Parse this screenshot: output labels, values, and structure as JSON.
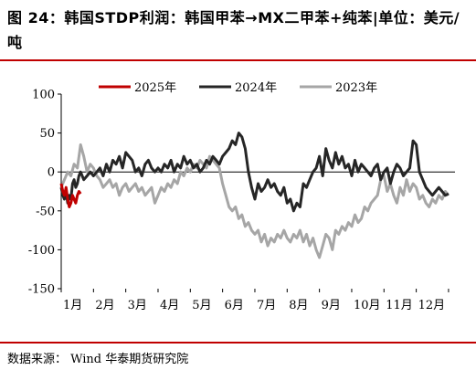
{
  "header": {
    "title": "图 24：韩国STDP利润：韩国甲苯→MX二甲苯+纯苯|单位：美元/吨"
  },
  "footer": {
    "source": "数据来源： Wind 华泰期货研究院"
  },
  "colors": {
    "series_2025": "#c00000",
    "series_2024": "#262626",
    "series_2023": "#a6a6a6",
    "rule": "#c00000"
  },
  "chart_data": {
    "type": "line",
    "title": "",
    "xlabel": "",
    "ylabel": "",
    "ylim": [
      -150,
      100
    ],
    "yticks": [
      100,
      50,
      0,
      -50,
      -100,
      -150
    ],
    "xlim": [
      0,
      12.2
    ],
    "x_tick_labels": [
      "1月",
      "2月",
      "3月",
      "4月",
      "5月",
      "6月",
      "7月",
      "8月",
      "9月",
      "10月",
      "11月",
      "12月"
    ],
    "grid": false,
    "legend": "top",
    "series": [
      {
        "name": "2025年",
        "color": "#c00000",
        "x": [
          0.0,
          0.05,
          0.1,
          0.15,
          0.2,
          0.25,
          0.3,
          0.35,
          0.4,
          0.45,
          0.5,
          0.55,
          0.6
        ],
        "y": [
          -15,
          -25,
          -30,
          -20,
          -35,
          -45,
          -40,
          -30,
          -35,
          -40,
          -30,
          -25,
          -28
        ]
      },
      {
        "name": "2024年",
        "color": "#262626",
        "x": [
          0.0,
          0.05,
          0.1,
          0.15,
          0.2,
          0.25,
          0.3,
          0.35,
          0.4,
          0.45,
          0.5,
          0.55,
          0.6,
          0.7,
          0.8,
          0.9,
          1.0,
          1.1,
          1.2,
          1.3,
          1.4,
          1.5,
          1.6,
          1.7,
          1.8,
          1.9,
          2.0,
          2.1,
          2.2,
          2.3,
          2.4,
          2.5,
          2.6,
          2.7,
          2.8,
          2.9,
          3.0,
          3.1,
          3.2,
          3.3,
          3.4,
          3.5,
          3.6,
          3.7,
          3.8,
          3.9,
          4.0,
          4.1,
          4.2,
          4.3,
          4.4,
          4.5,
          4.6,
          4.7,
          4.8,
          4.9,
          5.0,
          5.1,
          5.2,
          5.3,
          5.4,
          5.5,
          5.6,
          5.7,
          5.8,
          5.9,
          6.0,
          6.1,
          6.2,
          6.3,
          6.4,
          6.5,
          6.6,
          6.7,
          6.8,
          6.9,
          7.0,
          7.1,
          7.2,
          7.3,
          7.4,
          7.5,
          7.6,
          7.7,
          7.8,
          7.9,
          8.0,
          8.1,
          8.2,
          8.3,
          8.4,
          8.5,
          8.6,
          8.7,
          8.8,
          8.9,
          9.0,
          9.1,
          9.2,
          9.3,
          9.4,
          9.5,
          9.6,
          9.7,
          9.8,
          9.9,
          10.0,
          10.1,
          10.2,
          10.3,
          10.4,
          10.5,
          10.6,
          10.7,
          10.8,
          10.9,
          11.0,
          11.1,
          11.2,
          11.3,
          11.4,
          11.5,
          11.6,
          11.7,
          11.8,
          11.9,
          12.0
        ],
        "y": [
          -20,
          -30,
          -35,
          -25,
          -40,
          -30,
          -35,
          -15,
          -10,
          -20,
          -15,
          -5,
          0,
          -10,
          -5,
          0,
          -5,
          0,
          5,
          -5,
          10,
          0,
          15,
          10,
          20,
          5,
          25,
          20,
          15,
          0,
          5,
          -5,
          10,
          15,
          5,
          0,
          5,
          0,
          10,
          5,
          15,
          0,
          10,
          5,
          20,
          10,
          15,
          5,
          10,
          0,
          5,
          15,
          10,
          20,
          15,
          10,
          20,
          25,
          30,
          40,
          35,
          50,
          45,
          30,
          0,
          -20,
          -35,
          -15,
          -25,
          -20,
          -10,
          -20,
          -15,
          -25,
          -30,
          -20,
          -40,
          -35,
          -50,
          -40,
          -45,
          -15,
          -20,
          -10,
          0,
          5,
          20,
          -5,
          30,
          15,
          5,
          25,
          10,
          20,
          5,
          10,
          -5,
          15,
          0,
          10,
          5,
          0,
          -5,
          5,
          10,
          -10,
          0,
          5,
          -15,
          0,
          10,
          5,
          -5,
          0,
          5,
          40,
          35,
          0,
          -10,
          -20,
          -25,
          -30,
          -25,
          -20,
          -25,
          -30,
          -28
        ]
      },
      {
        "name": "2023年",
        "color": "#a6a6a6",
        "x": [
          0.0,
          0.1,
          0.2,
          0.3,
          0.4,
          0.5,
          0.6,
          0.7,
          0.8,
          0.9,
          1.0,
          1.1,
          1.2,
          1.3,
          1.4,
          1.5,
          1.6,
          1.7,
          1.8,
          1.9,
          2.0,
          2.1,
          2.2,
          2.3,
          2.4,
          2.5,
          2.6,
          2.7,
          2.8,
          2.9,
          3.0,
          3.1,
          3.2,
          3.3,
          3.4,
          3.5,
          3.6,
          3.7,
          3.8,
          3.9,
          4.0,
          4.1,
          4.2,
          4.3,
          4.4,
          4.5,
          4.6,
          4.7,
          4.8,
          4.9,
          5.0,
          5.1,
          5.2,
          5.3,
          5.4,
          5.5,
          5.6,
          5.7,
          5.8,
          5.9,
          6.0,
          6.1,
          6.2,
          6.3,
          6.4,
          6.5,
          6.6,
          6.7,
          6.8,
          6.9,
          7.0,
          7.1,
          7.2,
          7.3,
          7.4,
          7.5,
          7.6,
          7.7,
          7.8,
          7.9,
          8.0,
          8.1,
          8.2,
          8.3,
          8.4,
          8.5,
          8.6,
          8.7,
          8.8,
          8.9,
          9.0,
          9.1,
          9.2,
          9.3,
          9.4,
          9.5,
          9.6,
          9.7,
          9.8,
          9.9,
          10.0,
          10.1,
          10.2,
          10.3,
          10.4,
          10.5,
          10.6,
          10.7,
          10.8,
          10.9,
          11.0,
          11.1,
          11.2,
          11.3,
          11.4,
          11.5,
          11.6,
          11.7,
          11.8,
          11.9,
          12.0
        ],
        "y": [
          -20,
          -10,
          0,
          -5,
          10,
          5,
          35,
          20,
          0,
          10,
          5,
          -5,
          -10,
          -20,
          -15,
          -10,
          -20,
          -15,
          -30,
          -20,
          -15,
          -25,
          -20,
          -15,
          -25,
          -20,
          -30,
          -25,
          -20,
          -40,
          -30,
          -20,
          -25,
          -15,
          -20,
          -10,
          -15,
          0,
          -5,
          5,
          0,
          10,
          5,
          15,
          10,
          5,
          20,
          15,
          10,
          5,
          -15,
          -30,
          -45,
          -50,
          -45,
          -60,
          -55,
          -70,
          -65,
          -75,
          -80,
          -75,
          -90,
          -80,
          -95,
          -85,
          -90,
          -80,
          -85,
          -75,
          -85,
          -90,
          -80,
          -85,
          -75,
          -90,
          -80,
          -95,
          -85,
          -100,
          -110,
          -95,
          -80,
          -85,
          -100,
          -75,
          -80,
          -70,
          -75,
          -65,
          -70,
          -55,
          -65,
          -60,
          -45,
          -50,
          -40,
          -35,
          -30,
          -10,
          -5,
          -25,
          -15,
          -30,
          -40,
          -20,
          -30,
          -10,
          -25,
          -15,
          -20,
          -35,
          -30,
          -40,
          -45,
          -35,
          -40,
          -30,
          -35,
          -25,
          -30
        ]
      }
    ]
  }
}
